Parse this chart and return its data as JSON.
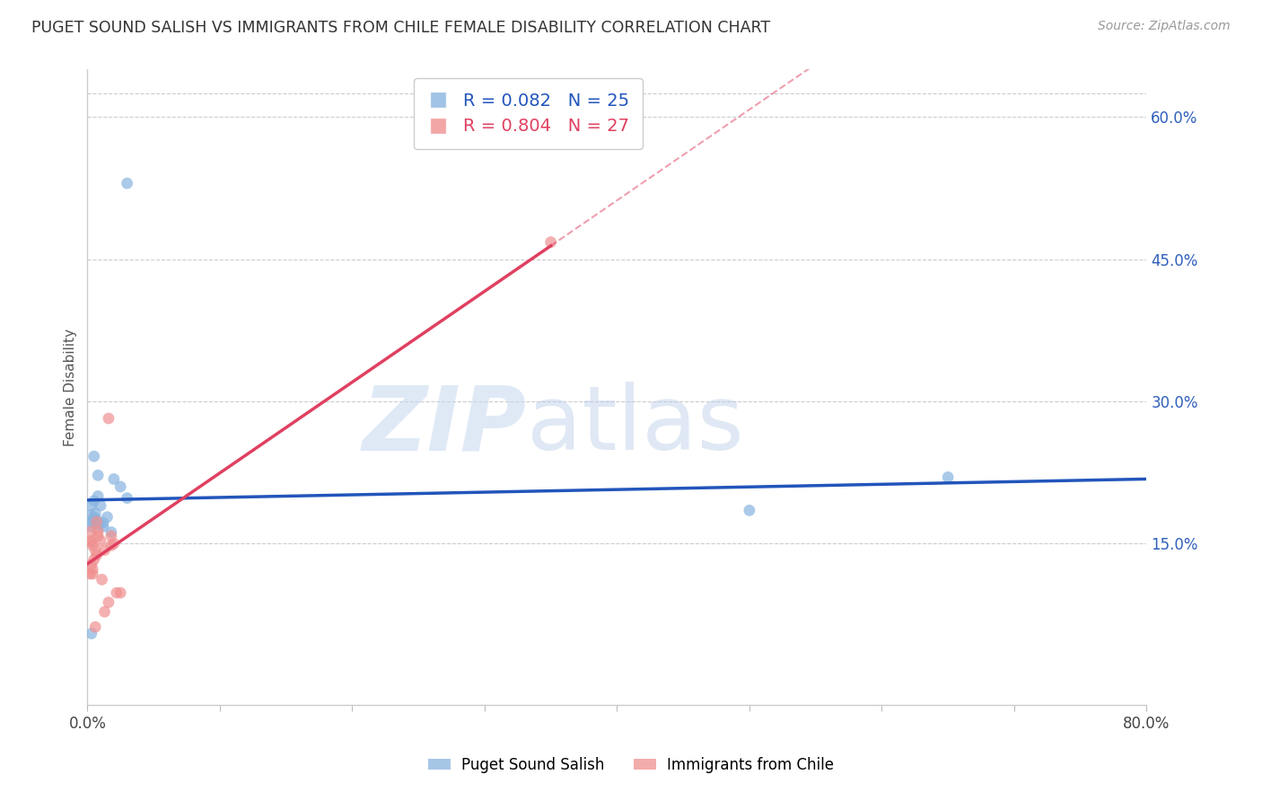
{
  "title": "PUGET SOUND SALISH VS IMMIGRANTS FROM CHILE FEMALE DISABILITY CORRELATION CHART",
  "source": "Source: ZipAtlas.com",
  "ylabel": "Female Disability",
  "xlim": [
    0.0,
    0.8
  ],
  "ylim": [
    -0.02,
    0.65
  ],
  "xticks": [
    0.0,
    0.1,
    0.2,
    0.3,
    0.4,
    0.5,
    0.6,
    0.7,
    0.8
  ],
  "xticklabels": [
    "0.0%",
    "",
    "",
    "",
    "",
    "",
    "",
    "",
    "80.0%"
  ],
  "yticks_right": [
    0.15,
    0.3,
    0.45,
    0.6
  ],
  "ytick_labels_right": [
    "15.0%",
    "30.0%",
    "45.0%",
    "60.0%"
  ],
  "blue_R": 0.082,
  "blue_N": 25,
  "pink_R": 0.804,
  "pink_N": 27,
  "blue_dot_color": "#88B4E0",
  "pink_dot_color": "#F09090",
  "blue_line_color": "#2255BB",
  "pink_line_color": "#E04060",
  "blue_label": "Puget Sound Salish",
  "pink_label": "Immigrants from Chile",
  "blue_scatter_x": [
    0.03,
    0.003,
    0.005,
    0.003,
    0.006,
    0.002,
    0.003,
    0.005,
    0.008,
    0.01,
    0.012,
    0.015,
    0.018,
    0.008,
    0.005,
    0.02,
    0.025,
    0.03,
    0.5,
    0.65,
    0.003,
    0.007,
    0.012,
    0.005,
    0.009
  ],
  "blue_scatter_y": [
    0.53,
    0.19,
    0.178,
    0.168,
    0.182,
    0.18,
    0.173,
    0.195,
    0.2,
    0.19,
    0.168,
    0.178,
    0.162,
    0.222,
    0.242,
    0.218,
    0.21,
    0.198,
    0.185,
    0.22,
    0.055,
    0.175,
    0.172,
    0.174,
    0.17
  ],
  "pink_scatter_x": [
    0.003,
    0.007,
    0.002,
    0.004,
    0.002,
    0.004,
    0.005,
    0.003,
    0.006,
    0.003,
    0.007,
    0.008,
    0.01,
    0.013,
    0.018,
    0.016,
    0.02,
    0.025,
    0.022,
    0.018,
    0.013,
    0.016,
    0.35,
    0.004,
    0.006,
    0.008,
    0.011
  ],
  "pink_scatter_y": [
    0.128,
    0.138,
    0.152,
    0.123,
    0.118,
    0.148,
    0.133,
    0.153,
    0.143,
    0.163,
    0.173,
    0.158,
    0.153,
    0.143,
    0.158,
    0.282,
    0.15,
    0.098,
    0.098,
    0.148,
    0.078,
    0.088,
    0.468,
    0.118,
    0.062,
    0.163,
    0.112
  ],
  "watermark_zip": "ZIP",
  "watermark_atlas": "atlas",
  "bg_color": "#FFFFFF",
  "grid_color": "#CCCCCC",
  "pink_line_x_solid_end": 0.35,
  "pink_line_x_dash_end": 0.8
}
